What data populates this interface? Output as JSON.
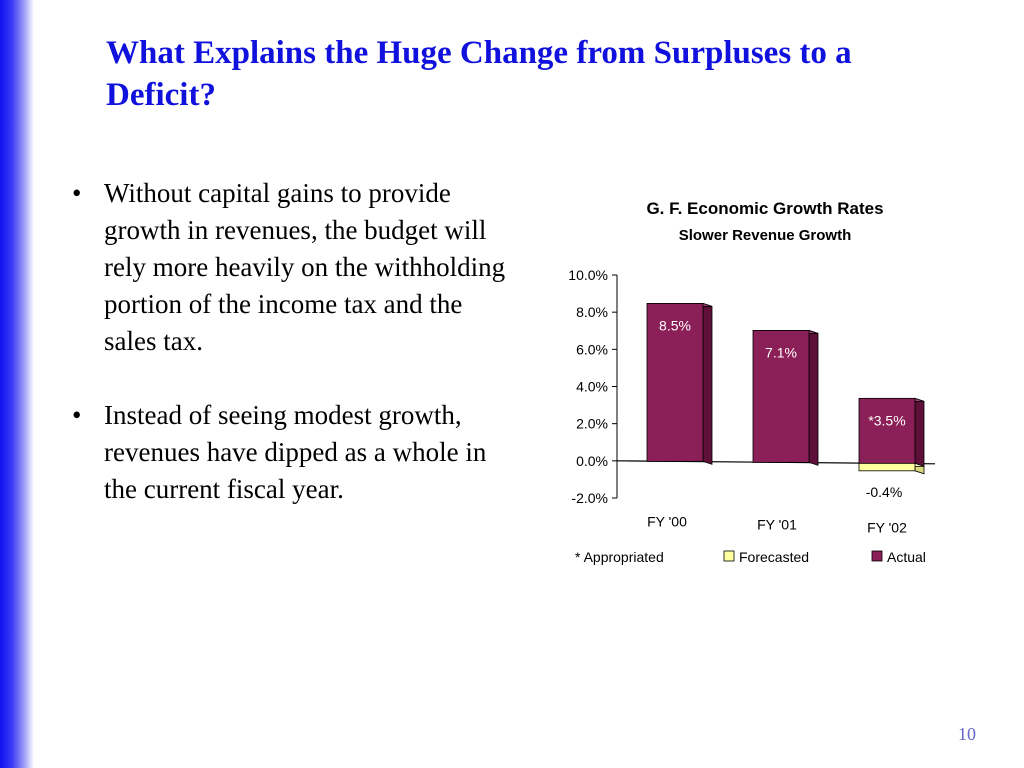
{
  "slide": {
    "title": "What Explains the Huge Change from Surpluses to a Deficit?",
    "bullets": [
      "Without capital gains to provide growth in revenues, the budget will rely more heavily on the withholding portion of the income tax and the sales tax.",
      "Instead of seeing modest growth, revenues have dipped as a whole in the current fiscal year."
    ],
    "page_number": "10"
  },
  "chart_data": {
    "type": "bar",
    "title": "G. F. Economic Growth Rates",
    "subtitle": "Slower Revenue Growth",
    "categories": [
      "FY '00",
      "FY '01",
      "FY '02"
    ],
    "series": [
      {
        "name": "* Appropriated",
        "values": [
          null,
          null,
          null
        ],
        "labels": [
          "",
          "",
          ""
        ],
        "color": "#ffffff"
      },
      {
        "name": "Forecasted",
        "values": [
          null,
          null,
          -0.4
        ],
        "labels": [
          "",
          "",
          "-0.4%"
        ],
        "color": "#ffffa0"
      },
      {
        "name": "Actual",
        "values": [
          8.5,
          7.1,
          3.5
        ],
        "labels": [
          "8.5%",
          "7.1%",
          "*3.5%"
        ],
        "color": "#8b1f57"
      }
    ],
    "y_ticks": [
      "10.0%",
      "8.0%",
      "6.0%",
      "4.0%",
      "2.0%",
      "0.0%",
      "-2.0%"
    ],
    "ylim": [
      -2,
      10
    ],
    "legend_position": "bottom",
    "three_d": true
  }
}
